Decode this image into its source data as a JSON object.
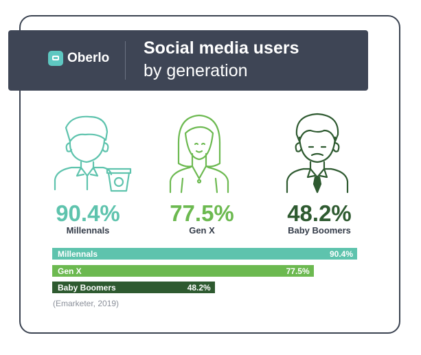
{
  "brand": {
    "name": "Oberlo"
  },
  "title": {
    "line1": "Social media users",
    "line2": "by generation"
  },
  "source": "(Emarketer, 2019)",
  "colors": {
    "millennials": "#5ec3ad",
    "genx": "#6cb950",
    "boomers": "#2e5a30",
    "banner": "#3e4555"
  },
  "generations": [
    {
      "name": "Millennals",
      "pct_label": "90.4%",
      "icon": "millennial-person-with-coffee-icon"
    },
    {
      "name": "Gen X",
      "pct_label": "77.5%",
      "icon": "gen-x-woman-icon"
    },
    {
      "name": "Baby Boomers",
      "pct_label": "48.2%",
      "icon": "baby-boomer-man-with-tie-icon"
    }
  ],
  "chart_data": {
    "type": "bar",
    "orientation": "horizontal",
    "categories": [
      "Millennals",
      "Gen X",
      "Baby Boomers"
    ],
    "values": [
      90.4,
      77.5,
      48.2
    ],
    "value_labels": [
      "90.4%",
      "77.5%",
      "48.2%"
    ],
    "title": "Social media users by generation",
    "xlim": [
      0,
      100
    ]
  }
}
